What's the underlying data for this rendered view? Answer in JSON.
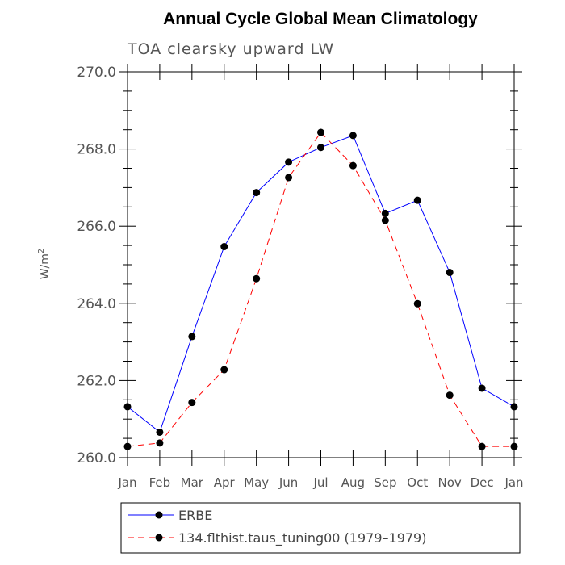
{
  "chart_data": {
    "type": "line",
    "title": "Annual Cycle Global Mean Climatology",
    "subtitle": "TOA clearsky upward LW",
    "xlabel": "",
    "ylabel": "W/m",
    "ylabel_superscript": "2",
    "categories": [
      "Jan",
      "Feb",
      "Mar",
      "Apr",
      "May",
      "Jun",
      "Jul",
      "Aug",
      "Sep",
      "Oct",
      "Nov",
      "Dec",
      "Jan"
    ],
    "ylim": [
      260.0,
      270.0
    ],
    "yticks": [
      "260.0",
      "262.0",
      "264.0",
      "266.0",
      "268.0",
      "270.0"
    ],
    "grid": false,
    "legend_position": "bottom",
    "series": [
      {
        "name": "ERBE",
        "color": "#0000ff",
        "dash": "solid",
        "marker": "circle",
        "values": [
          261.32,
          260.66,
          263.14,
          265.47,
          266.87,
          267.66,
          268.04,
          268.35,
          266.33,
          266.67,
          264.8,
          261.8,
          261.32
        ]
      },
      {
        "name": "134.flthist.taus_tuning00 (1979–1979)",
        "color": "#ff0000",
        "dash": "dashed",
        "marker": "circle",
        "values": [
          260.29,
          260.38,
          261.43,
          262.28,
          264.64,
          267.26,
          268.43,
          267.57,
          266.15,
          263.99,
          261.62,
          260.29,
          260.29
        ]
      }
    ]
  }
}
